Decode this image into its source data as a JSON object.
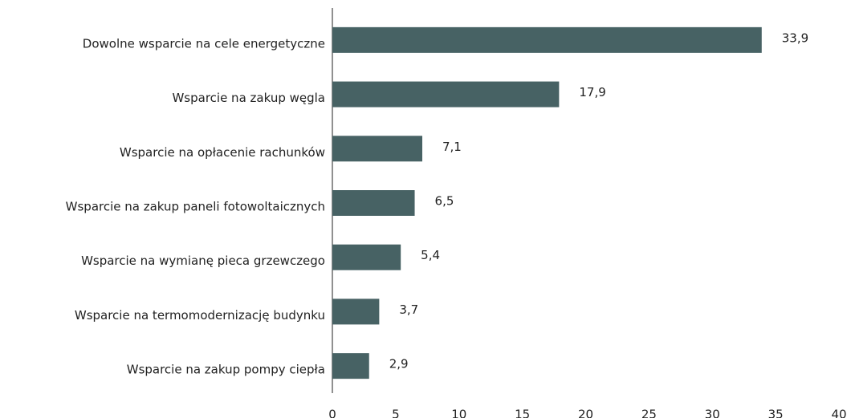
{
  "chart_data": {
    "type": "bar",
    "orientation": "horizontal",
    "categories": [
      "Dowolne wsparcie na cele energetyczne",
      "Wsparcie na zakup węgla",
      "Wsparcie na opłacenie rachunków",
      "Wsparcie na zakup paneli fotowoltaicznych",
      "Wsparcie na wymianę pieca grzewczego",
      "Wsparcie na termomodernizację budynku",
      "Wsparcie na zakup pompy ciepła"
    ],
    "values": [
      33.9,
      17.9,
      7.1,
      6.5,
      5.4,
      3.7,
      2.9
    ],
    "value_labels": [
      "33,9",
      "17,9",
      "7,1",
      "6,5",
      "5,4",
      "3,7",
      "2,9"
    ],
    "color": "#476264",
    "xlim": [
      0,
      40
    ],
    "xticks": [
      0,
      5,
      10,
      15,
      20,
      25,
      30,
      35,
      40
    ]
  }
}
